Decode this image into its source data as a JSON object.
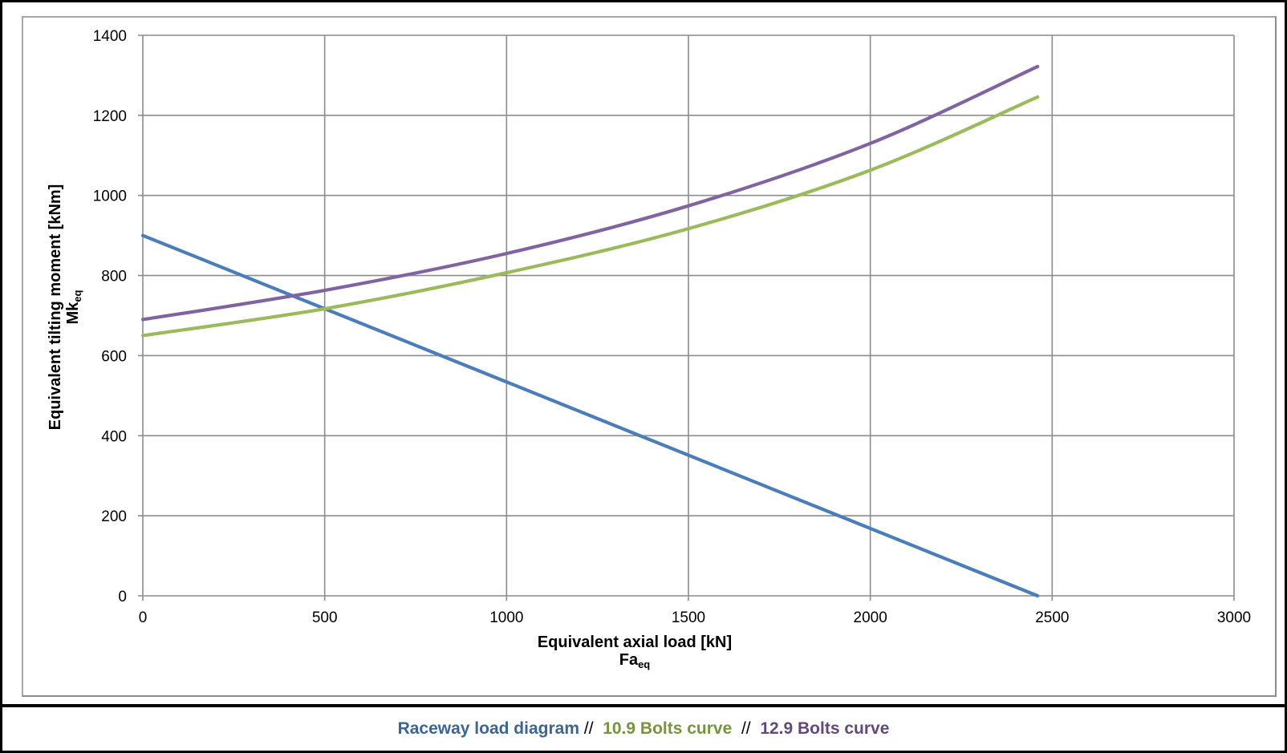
{
  "chart_data": {
    "type": "line",
    "title": "",
    "xlabel": "Equivalent axial load [kN]",
    "xlabel_symbol": "Fa",
    "xlabel_symbol_sub": "eq",
    "ylabel": "Equivalent tilting moment [kNm]",
    "ylabel_symbol": "Mk",
    "ylabel_symbol_sub": "eq",
    "xlim": [
      0,
      3000
    ],
    "ylim": [
      0,
      1400
    ],
    "xticks": [
      0,
      500,
      1000,
      1500,
      2000,
      2500,
      3000
    ],
    "yticks": [
      0,
      200,
      400,
      600,
      800,
      1000,
      1200,
      1400
    ],
    "xtick_labels": [
      "0",
      "500",
      "1000",
      "1500",
      "2000",
      "2500",
      "3000"
    ],
    "ytick_labels": [
      "0",
      "200",
      "400",
      "600",
      "800",
      "1000",
      "1200",
      "1400"
    ],
    "grid": true,
    "legend_position": "bottom",
    "series": [
      {
        "name": "Raceway load diagram",
        "color": "#4a7ebb",
        "legend_color": "#3b6597",
        "x": [
          0,
          2460
        ],
        "y": [
          900,
          0
        ]
      },
      {
        "name": "10.9 Bolts curve",
        "color": "#9bbb59",
        "legend_color": "#77933c",
        "x": [
          0,
          500,
          1000,
          1500,
          2000,
          2460
        ],
        "y": [
          650,
          717,
          807,
          917,
          1063,
          1246
        ]
      },
      {
        "name": "12.9 Bolts curve",
        "color": "#8064a2",
        "legend_color": "#604a7b",
        "x": [
          0,
          500,
          1000,
          1500,
          2000,
          2460
        ],
        "y": [
          690,
          763,
          855,
          974,
          1130,
          1322
        ]
      }
    ]
  },
  "legend": {
    "separator": "//"
  }
}
